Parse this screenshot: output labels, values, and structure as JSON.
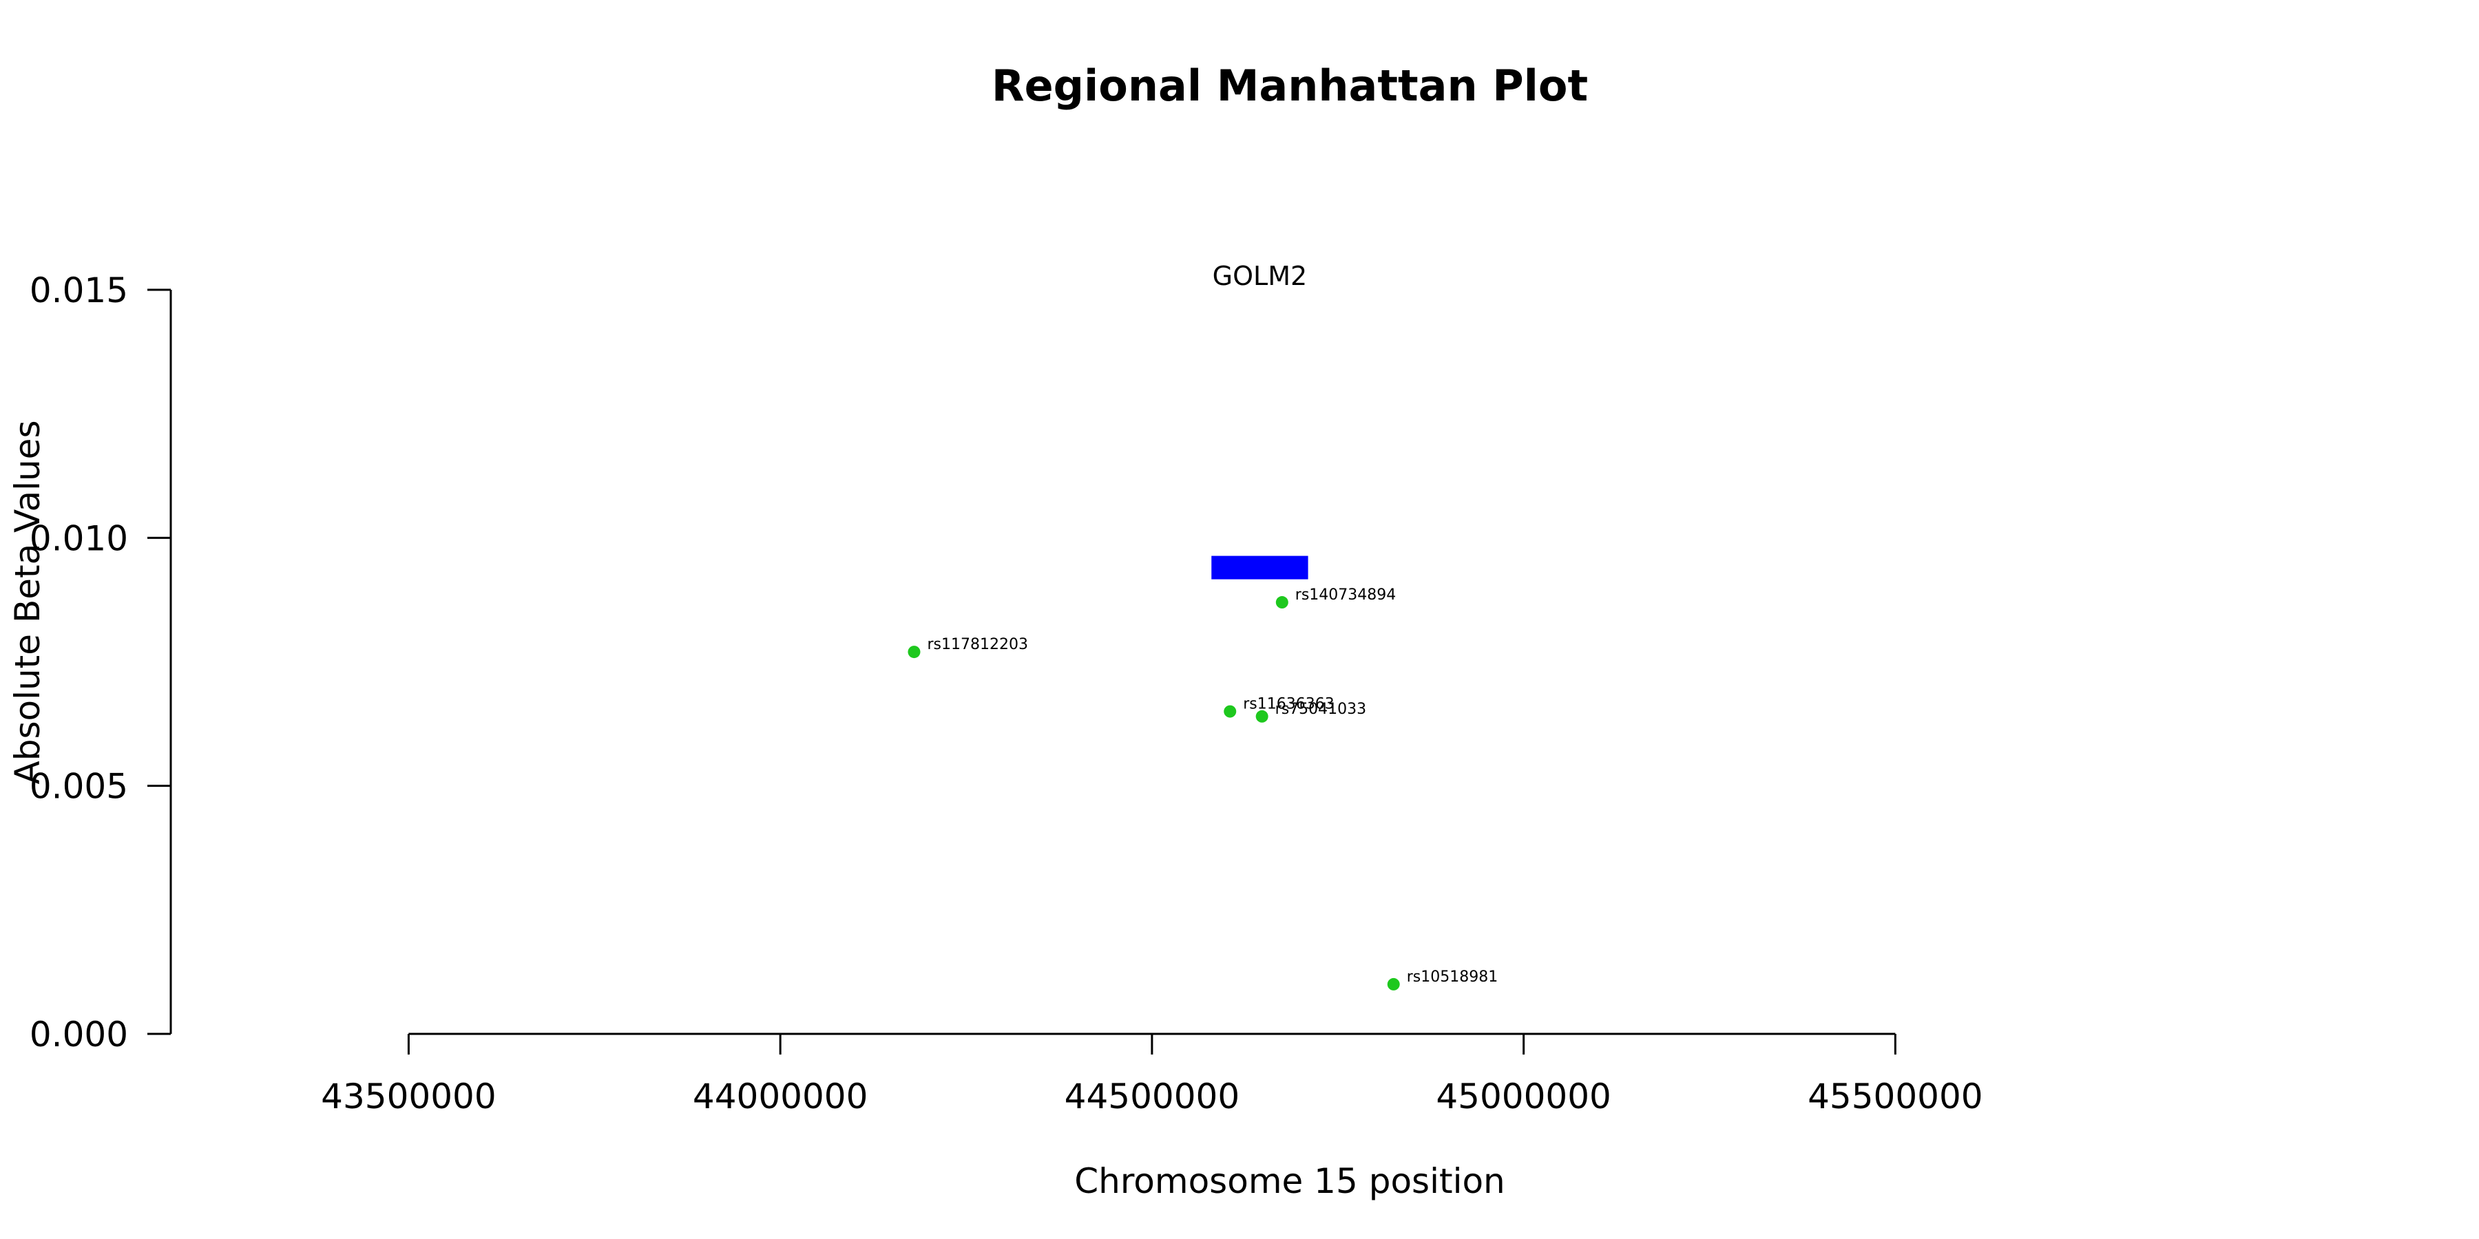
{
  "chart_data": {
    "type": "scatter",
    "title": "Regional Manhattan Plot",
    "xlabel": "Chromosome 15 position",
    "ylabel": "Absolute Beta Values",
    "xlim": [
      43180000,
      46200000
    ],
    "ylim": [
      0,
      0.015
    ],
    "x_ticks": [
      43500000,
      44000000,
      44500000,
      45000000,
      45500000
    ],
    "x_tick_labels": [
      "43500000",
      "44000000",
      "44500000",
      "45000000",
      "45500000"
    ],
    "y_ticks": [
      0.0,
      0.005,
      0.01,
      0.015
    ],
    "y_tick_labels": [
      "0.000",
      "0.005",
      "0.010",
      "0.015"
    ],
    "point_color": "#1ec81e",
    "gene_color": "#0000ff",
    "genes": [
      {
        "name": "GOLM2",
        "start": 44580000,
        "end": 44710000,
        "y": 0.0094
      }
    ],
    "points": [
      {
        "label": "rs117812203",
        "x": 44180000,
        "y": 0.0077
      },
      {
        "label": "rs140734894",
        "x": 44675000,
        "y": 0.0087
      },
      {
        "label": "rs11636363",
        "x": 44605000,
        "y": 0.0065
      },
      {
        "label": "rs75041033",
        "x": 44648000,
        "y": 0.0064
      },
      {
        "label": "rs10518981",
        "x": 44825000,
        "y": 0.001
      }
    ],
    "grid": false,
    "legend": "none"
  }
}
